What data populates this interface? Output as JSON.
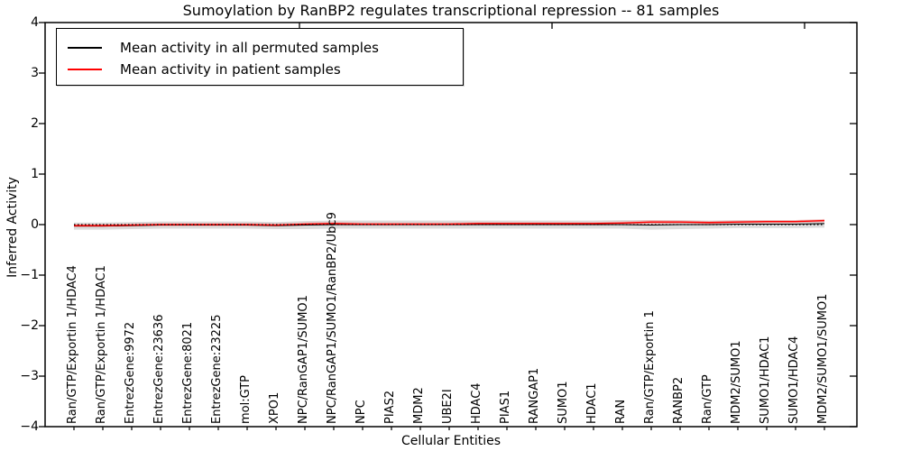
{
  "title": "Sumoylation by RanBP2 regulates transcriptional repression -- 81 samples",
  "axes": {
    "ylabel": "Inferred Activity",
    "xlabel": "Cellular Entities"
  },
  "legend": {
    "items": [
      {
        "label": "Mean activity in all permuted samples",
        "color": "#000000"
      },
      {
        "label": "Mean activity in patient samples",
        "color": "#ff0000"
      }
    ]
  },
  "chart_data": {
    "type": "line",
    "title": "Sumoylation by RanBP2 regulates transcriptional repression -- 81 samples",
    "xlabel": "Cellular Entities",
    "ylabel": "Inferred Activity",
    "ylim": [
      -4,
      4
    ],
    "yticks": [
      4,
      3,
      2,
      1,
      0,
      -1,
      -2,
      -3,
      -4
    ],
    "ytick_labels": [
      "4",
      "3",
      "2",
      "1",
      "0",
      "−1",
      "−2",
      "−3",
      "−4"
    ],
    "grid": false,
    "legend_position": "upper left",
    "categories": [
      "Ran/GTP/Exportin 1/HDAC4",
      "Ran/GTP/Exportin 1/HDAC1",
      "EntrezGene:9972",
      "EntrezGene:23636",
      "EntrezGene:8021",
      "EntrezGene:23225",
      "mol:GTP",
      "XPO1",
      "NPC/RanGAP1/SUMO1",
      "NPC/RanGAP1/SUMO1/RanBP2/Ubc9",
      "NPC",
      "PIAS2",
      "MDM2",
      "UBE2I",
      "HDAC4",
      "PIAS1",
      "RANGAP1",
      "SUMO1",
      "HDAC1",
      "RAN",
      "Ran/GTP/Exportin 1",
      "RANBP2",
      "Ran/GTP",
      "MDM2/SUMO1",
      "SUMO1/HDAC1",
      "SUMO1/HDAC4",
      "MDM2/SUMO1/SUMO1"
    ],
    "series": [
      {
        "name": "Mean activity in all permuted samples",
        "color": "#000000",
        "style": "solid",
        "width": 1,
        "values": [
          -0.03,
          -0.03,
          -0.02,
          -0.01,
          -0.01,
          -0.01,
          -0.01,
          -0.02,
          -0.01,
          0.0,
          0.0,
          0.0,
          0.0,
          0.0,
          0.0,
          0.0,
          0.0,
          0.0,
          0.0,
          0.0,
          -0.01,
          0.0,
          0.0,
          0.01,
          0.01,
          0.01,
          0.02
        ]
      },
      {
        "name": "Mean activity in patient samples",
        "color": "#ff0000",
        "style": "solid",
        "width": 1.4,
        "values": [
          -0.02,
          -0.02,
          -0.01,
          0.0,
          0.0,
          0.0,
          0.0,
          -0.01,
          0.01,
          0.02,
          0.01,
          0.01,
          0.01,
          0.01,
          0.02,
          0.02,
          0.02,
          0.02,
          0.02,
          0.03,
          0.05,
          0.05,
          0.04,
          0.05,
          0.06,
          0.06,
          0.08
        ]
      },
      {
        "name": "zero-reference",
        "color": "#000000",
        "style": "dotted",
        "width": 1.2,
        "values": [
          0,
          0,
          0,
          0,
          0,
          0,
          0,
          0,
          0,
          0,
          0,
          0,
          0,
          0,
          0,
          0,
          0,
          0,
          0,
          0,
          0,
          0,
          0,
          0,
          0,
          0,
          0
        ]
      }
    ],
    "bands": [
      {
        "name": "permuted-std-band",
        "color": "#bfbfbf",
        "opacity": 0.55,
        "upper": [
          0.04,
          0.04,
          0.05,
          0.06,
          0.06,
          0.06,
          0.06,
          0.05,
          0.07,
          0.08,
          0.08,
          0.08,
          0.08,
          0.08,
          0.08,
          0.08,
          0.08,
          0.08,
          0.08,
          0.09,
          0.09,
          0.09,
          0.08,
          0.09,
          0.09,
          0.09,
          0.1
        ],
        "lower": [
          -0.1,
          -0.1,
          -0.09,
          -0.08,
          -0.08,
          -0.08,
          -0.08,
          -0.09,
          -0.09,
          -0.08,
          -0.08,
          -0.08,
          -0.08,
          -0.08,
          -0.08,
          -0.08,
          -0.08,
          -0.08,
          -0.08,
          -0.08,
          -0.1,
          -0.09,
          -0.08,
          -0.07,
          -0.07,
          -0.07,
          -0.06
        ]
      },
      {
        "name": "patient-band",
        "color": "#ff6666",
        "opacity": 0.35,
        "upper": [
          0.01,
          0.01,
          0.02,
          0.03,
          0.03,
          0.03,
          0.03,
          0.02,
          0.04,
          0.05,
          0.04,
          0.04,
          0.04,
          0.04,
          0.05,
          0.05,
          0.05,
          0.05,
          0.05,
          0.06,
          0.09,
          0.08,
          0.07,
          0.08,
          0.09,
          0.09,
          0.11
        ],
        "lower": [
          -0.05,
          -0.05,
          -0.04,
          -0.03,
          -0.03,
          -0.03,
          -0.03,
          -0.04,
          -0.02,
          -0.01,
          -0.02,
          -0.02,
          -0.02,
          -0.02,
          -0.01,
          -0.01,
          -0.01,
          -0.01,
          -0.01,
          0.0,
          0.01,
          0.02,
          0.01,
          0.02,
          0.03,
          0.03,
          0.05
        ]
      }
    ]
  }
}
